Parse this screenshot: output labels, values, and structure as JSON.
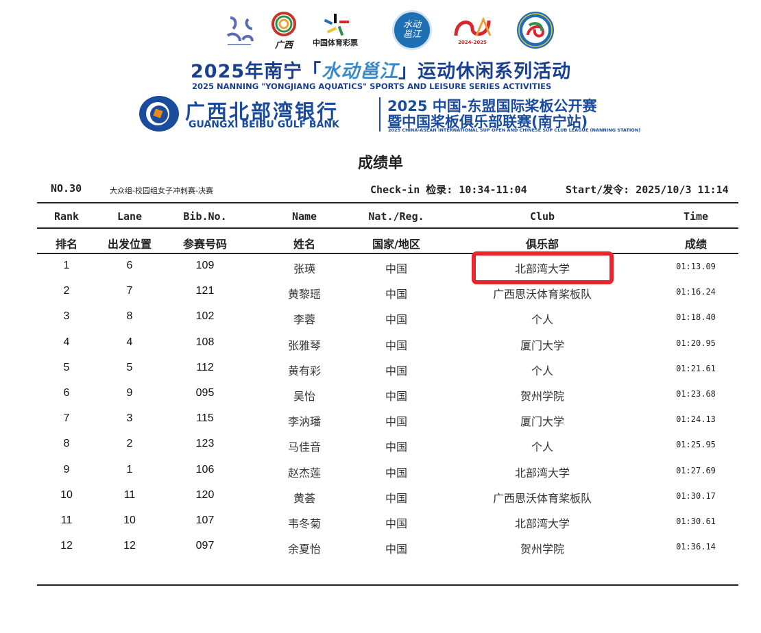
{
  "logos": {
    "items": [
      {
        "name": "nanning-sports-association-logo",
        "color": "#5a6bb5"
      },
      {
        "name": "guangxi-tourism-logo",
        "text": "广西",
        "color": "#c8342b"
      },
      {
        "name": "china-sports-lottery-logo",
        "text": "中国体育彩票",
        "color": "#d9252b"
      },
      {
        "name": "yongjiang-aquatics-logo",
        "text": "水动邕江",
        "color": "#1f6fb5"
      },
      {
        "name": "asean-china-year-logo",
        "text": "2024-2025",
        "color": "#d9252b"
      },
      {
        "name": "sports-federation-logo",
        "color": "#1f8a4c"
      }
    ]
  },
  "banner": {
    "title_prefix": "2025年南宁「",
    "title_brush": "水动邕江",
    "title_suffix": "」运动休闲系列活动",
    "subtitle": "2025 NANNING \"YONGJIANG AQUATICS\" SPORTS AND LEISURE SERIES ACTIVITIES",
    "bank_cn": "广西北部湾银行",
    "bank_en": "GUANGXI BEIBU GULF BANK",
    "event_line1": "2025 中国-东盟国际桨板公开赛",
    "event_line2": "暨中国桨板俱乐部联赛(南宁站)",
    "event_en": "2025 CHINA-ASEAN INTERNATIONAL SUP OPEN AND CHINESE SUP CLUB LEAGUE (NANNING STATION)",
    "brand_color": "#1a4b9c"
  },
  "document": {
    "title": "成绩单",
    "event_no": "NO.30",
    "event_name": "大众组-校园组女子冲刺赛-决赛",
    "checkin": "Check-in 检录: 10:34-11:04",
    "start": "Start/发令: 2025/10/3 11:14"
  },
  "table": {
    "headers_en": [
      "Rank",
      "Lane",
      "Bib.No.",
      "Name",
      "Nat./Reg.",
      "Club",
      "Time"
    ],
    "headers_cn": [
      "排名",
      "出发位置",
      "参赛号码",
      "姓名",
      "国家/地区",
      "俱乐部",
      "成绩"
    ],
    "rows": [
      [
        "1",
        "6",
        "109",
        "张瑛",
        "中国",
        "北部湾大学",
        "01:13.09"
      ],
      [
        "2",
        "7",
        "121",
        "黄黎瑶",
        "中国",
        "广西思沃体育桨板队",
        "01:16.24"
      ],
      [
        "3",
        "8",
        "102",
        "李蓉",
        "中国",
        "个人",
        "01:18.40"
      ],
      [
        "4",
        "4",
        "108",
        "张雅琴",
        "中国",
        "厦门大学",
        "01:20.95"
      ],
      [
        "5",
        "5",
        "112",
        "黄有彩",
        "中国",
        "个人",
        "01:21.61"
      ],
      [
        "6",
        "9",
        "095",
        "吴怡",
        "中国",
        "贺州学院",
        "01:23.68"
      ],
      [
        "7",
        "3",
        "115",
        "李汭璠",
        "中国",
        "厦门大学",
        "01:24.13"
      ],
      [
        "8",
        "2",
        "123",
        "马佳音",
        "中国",
        "个人",
        "01:25.95"
      ],
      [
        "9",
        "1",
        "106",
        "赵杰莲",
        "中国",
        "北部湾大学",
        "01:27.69"
      ],
      [
        "10",
        "11",
        "120",
        "黄荟",
        "中国",
        "广西思沃体育桨板队",
        "01:30.17"
      ],
      [
        "11",
        "10",
        "107",
        "韦冬菊",
        "中国",
        "北部湾大学",
        "01:30.61"
      ],
      [
        "12",
        "12",
        "097",
        "余夏怡",
        "中国",
        "贺州学院",
        "01:36.14"
      ]
    ],
    "highlight_color": "#e8262b"
  }
}
